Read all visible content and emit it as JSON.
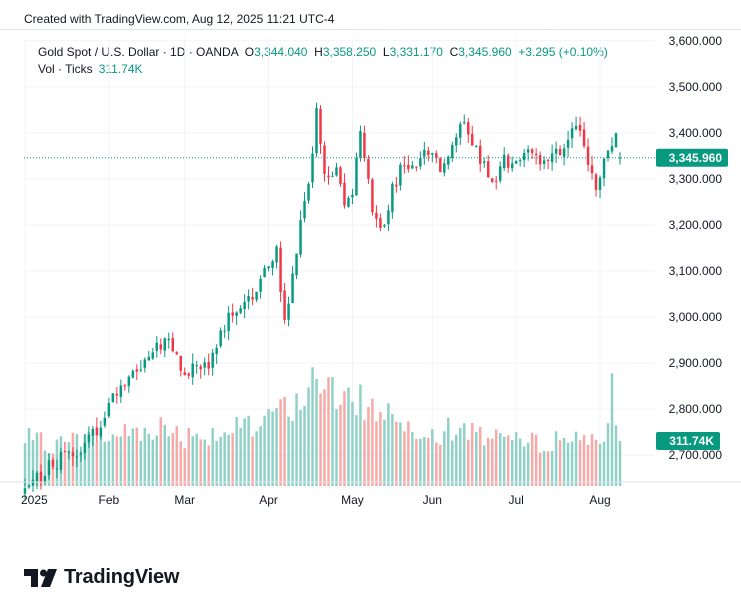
{
  "header": {
    "attribution": "Created with TradingView.com, Aug 12, 2025 11:21 UTC-4"
  },
  "legend": {
    "symbol": "Gold Spot / U.S. Dollar · 1D · OANDA",
    "open_label": "O",
    "open": "3,344.040",
    "high_label": "H",
    "high": "3,358.250",
    "low_label": "L",
    "low": "3,331.170",
    "close_label": "C",
    "close": "3,345.960",
    "change": "+3.295 (+0.10%)",
    "vol_label": "Vol · Ticks",
    "vol_value": "311.74K"
  },
  "footer": {
    "brand": "TradingView"
  },
  "colors": {
    "up": "#089981",
    "down": "#f23645",
    "vol_up": "#8fd1c6",
    "vol_down": "#f7a9a7",
    "grid": "#f0f3fa",
    "text": "#131722"
  },
  "chart_data": {
    "type": "candlestick",
    "title": "Gold Spot / U.S. Dollar · 1D · OANDA",
    "y_axis": {
      "ticks": [
        "2,700.000",
        "2,800.000",
        "2,900.000",
        "3,000.000",
        "3,100.000",
        "3,200.000",
        "3,300.000",
        "3,400.000",
        "3,500.000",
        "3,600.000"
      ],
      "tick_values": [
        2700,
        2800,
        2900,
        3000,
        3100,
        3200,
        3300,
        3400,
        3500,
        3600
      ],
      "ylim": [
        2618,
        3606
      ]
    },
    "x_axis": {
      "labels": [
        "2025",
        "Feb",
        "Mar",
        "Apr",
        "May",
        "Jun",
        "Jul",
        "Aug"
      ],
      "label_bar_index": [
        0,
        21,
        40,
        61,
        82,
        102,
        123,
        144
      ]
    },
    "last_price_label": "3,345.960",
    "last_volume_label": "311.74K",
    "volume_ymax": 900,
    "keypoints": [
      [
        0,
        2625,
        330
      ],
      [
        5,
        2665,
        290
      ],
      [
        10,
        2700,
        300
      ],
      [
        15,
        2720,
        320
      ],
      [
        20,
        2785,
        340
      ],
      [
        23,
        2840,
        350
      ],
      [
        28,
        2885,
        390
      ],
      [
        33,
        2935,
        410
      ],
      [
        35,
        2950,
        400
      ],
      [
        38,
        2915,
        380
      ],
      [
        40,
        2870,
        350
      ],
      [
        43,
        2900,
        360
      ],
      [
        46,
        2885,
        360
      ],
      [
        49,
        2960,
        380
      ],
      [
        52,
        3020,
        380
      ],
      [
        55,
        3030,
        390
      ],
      [
        58,
        3055,
        400
      ],
      [
        61,
        3110,
        440
      ],
      [
        63,
        3140,
        550
      ],
      [
        65,
        2980,
        520
      ],
      [
        67,
        3100,
        580
      ],
      [
        70,
        3250,
        620
      ],
      [
        72,
        3350,
        680
      ],
      [
        73,
        3440,
        850
      ],
      [
        75,
        3300,
        730
      ],
      [
        78,
        3330,
        600
      ],
      [
        80,
        3240,
        540
      ],
      [
        82,
        3280,
        560
      ],
      [
        84,
        3400,
        620
      ],
      [
        87,
        3230,
        520
      ],
      [
        89,
        3180,
        560
      ],
      [
        92,
        3280,
        480
      ],
      [
        95,
        3340,
        440
      ],
      [
        98,
        3320,
        400
      ],
      [
        101,
        3360,
        420
      ],
      [
        104,
        3330,
        380
      ],
      [
        107,
        3380,
        380
      ],
      [
        109,
        3420,
        400
      ],
      [
        112,
        3380,
        380
      ],
      [
        115,
        3330,
        360
      ],
      [
        118,
        3290,
        380
      ],
      [
        120,
        3340,
        340
      ],
      [
        123,
        3330,
        300
      ],
      [
        126,
        3350,
        300
      ],
      [
        129,
        3330,
        300
      ],
      [
        132,
        3340,
        320
      ],
      [
        135,
        3380,
        330
      ],
      [
        137,
        3420,
        320
      ],
      [
        139,
        3390,
        340
      ],
      [
        141,
        3330,
        350
      ],
      [
        143,
        3290,
        360
      ],
      [
        145,
        3350,
        340
      ],
      [
        147,
        3370,
        360
      ],
      [
        149,
        3400,
        330
      ]
    ],
    "last_bar": {
      "open": 3344.04,
      "high": 3358.25,
      "low": 3331.17,
      "close": 3345.96,
      "volume": 311.74
    },
    "volume_spike_bar": {
      "index": 147,
      "volume": 780
    }
  }
}
